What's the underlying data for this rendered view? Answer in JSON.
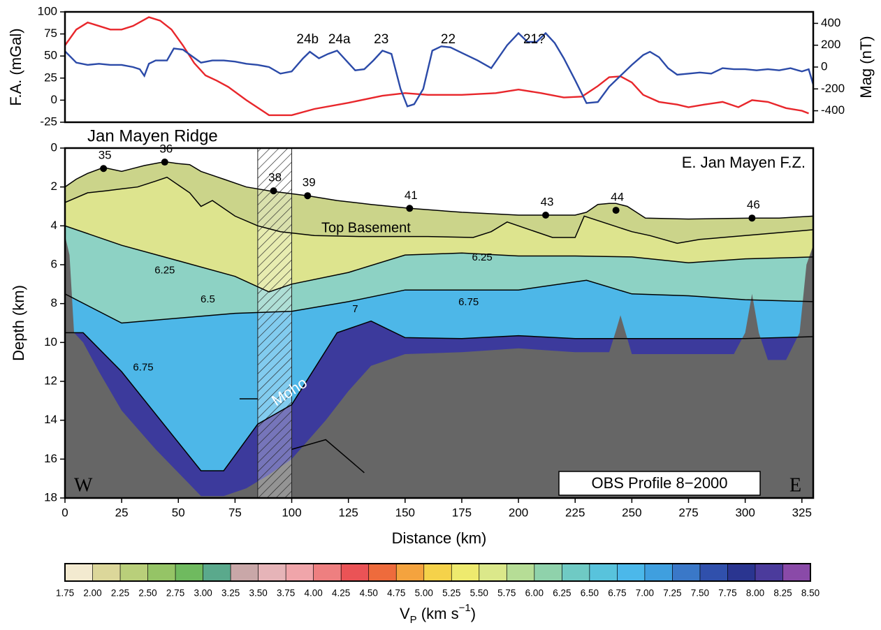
{
  "chart_data": [
    {
      "type": "line",
      "ylabel": "F.A. (mGal)",
      "y2label": "Mag (nT)",
      "xlim": [
        0,
        330
      ],
      "ylim": [
        -25,
        100
      ],
      "yticks": [
        -25,
        0,
        25,
        50,
        75,
        100
      ],
      "y2lim": [
        -505,
        505
      ],
      "y2ticks": [
        -400,
        -200,
        0,
        200,
        400
      ],
      "series": [
        {
          "color": "#e8262b",
          "x": [
            0,
            5,
            10,
            15,
            20,
            25,
            30,
            37,
            42,
            47,
            52,
            57,
            62,
            67,
            72,
            80,
            90,
            100,
            110,
            125,
            140,
            150,
            160,
            175,
            190,
            200,
            210,
            220,
            228,
            235,
            240,
            245,
            250,
            255,
            262,
            270,
            275,
            282,
            290,
            297,
            303,
            310,
            318,
            325,
            328
          ],
          "values": [
            62,
            80,
            88,
            84,
            80,
            80,
            84,
            94,
            90,
            80,
            62,
            42,
            28,
            22,
            15,
            0,
            -17,
            -17,
            -10,
            -3,
            5,
            8,
            6,
            6,
            8,
            12,
            8,
            3,
            4,
            16,
            26,
            27,
            20,
            6,
            -2,
            -5,
            -8,
            -5,
            -2,
            -8,
            0,
            -2,
            -9,
            -12,
            -15
          ]
        },
        {
          "color": "#2b4aa8",
          "axis": "y2",
          "x": [
            0,
            5,
            10,
            15,
            20,
            25,
            30,
            33,
            35,
            37,
            40,
            45,
            48,
            52,
            56,
            60,
            65,
            70,
            75,
            80,
            85,
            90,
            95,
            100,
            105,
            108,
            112,
            116,
            120,
            124,
            128,
            132,
            136,
            140,
            144,
            148,
            151,
            154,
            158,
            162,
            166,
            170,
            175,
            182,
            188,
            195,
            200,
            204,
            208,
            212,
            216,
            220,
            225,
            230,
            235,
            240,
            245,
            250,
            255,
            258,
            262,
            266,
            270,
            275,
            280,
            285,
            290,
            295,
            300,
            305,
            310,
            315,
            320,
            325,
            328,
            330
          ],
          "values": [
            145,
            40,
            20,
            30,
            20,
            20,
            0,
            -20,
            -80,
            30,
            60,
            60,
            170,
            160,
            100,
            40,
            60,
            60,
            50,
            30,
            20,
            0,
            -60,
            -40,
            80,
            140,
            80,
            120,
            150,
            60,
            -30,
            -20,
            60,
            150,
            120,
            -200,
            -360,
            -340,
            -200,
            150,
            190,
            180,
            130,
            60,
            -10,
            200,
            310,
            230,
            230,
            310,
            220,
            80,
            -120,
            -330,
            -320,
            -180,
            -80,
            20,
            110,
            140,
            90,
            -10,
            -70,
            -60,
            -50,
            -60,
            -10,
            -20,
            -20,
            -30,
            -20,
            -30,
            -10,
            -40,
            -20,
            -160
          ]
        }
      ],
      "annotations": [
        {
          "text": "24b",
          "x": 107
        },
        {
          "text": "24a",
          "x": 121
        },
        {
          "text": "23",
          "x": 139.5
        },
        {
          "text": "22",
          "x": 169
        },
        {
          "text": "21?",
          "x": 207
        }
      ]
    },
    {
      "type": "section",
      "xlabel": "Distance (km)",
      "ylabel": "Depth (km)",
      "xlim": [
        0,
        330
      ],
      "xticks": [
        0,
        25,
        50,
        75,
        100,
        125,
        150,
        175,
        200,
        225,
        250,
        275,
        300,
        325
      ],
      "ylim": [
        18,
        0
      ],
      "yticks": [
        0,
        2,
        4,
        6,
        8,
        10,
        12,
        14,
        16,
        18
      ],
      "region_left": "Jan Mayen Ridge",
      "region_right": "E. Jan Mayen F.Z.",
      "top_basement_label": "Top Basement",
      "moho_label": "Moho",
      "west": "W",
      "east": "E",
      "profile": "OBS Profile 8−2000",
      "boundaries": [
        {
          "x": [
            0,
            5,
            10,
            17,
            25,
            30,
            35,
            44,
            50,
            55,
            60,
            70,
            80,
            90,
            100,
            107,
            120,
            135,
            152,
            175,
            200,
            212,
            225,
            230,
            235,
            240,
            243,
            248,
            252,
            256,
            275,
            303,
            315,
            330
          ],
          "depth": [
            2.0,
            1.6,
            1.3,
            1.0,
            1.2,
            1.05,
            0.9,
            0.7,
            0.8,
            0.85,
            1.2,
            1.6,
            2.0,
            2.2,
            2.35,
            2.45,
            2.7,
            2.9,
            3.1,
            3.3,
            3.45,
            3.45,
            3.45,
            3.3,
            2.9,
            2.85,
            2.85,
            3.0,
            3.3,
            3.6,
            3.65,
            3.6,
            3.6,
            3.5
          ]
        },
        {
          "x": [
            0,
            10,
            18,
            25,
            32,
            40,
            45,
            55,
            60,
            65,
            75,
            85,
            95,
            110,
            130,
            160,
            180,
            188,
            195,
            205,
            215,
            225,
            229,
            250,
            258,
            270,
            280,
            290,
            300,
            330
          ],
          "depth": [
            2.8,
            2.3,
            2.2,
            2.1,
            2.0,
            1.7,
            1.5,
            2.3,
            3.0,
            2.7,
            3.5,
            4.0,
            4.3,
            4.5,
            4.55,
            4.55,
            4.6,
            4.3,
            3.8,
            4.2,
            4.6,
            4.6,
            3.5,
            4.3,
            4.5,
            4.9,
            4.7,
            4.6,
            4.5,
            4.2
          ]
        },
        {
          "x": [
            0,
            25,
            50,
            75,
            90,
            100,
            125,
            150,
            175,
            200,
            225,
            250,
            275,
            300,
            330
          ],
          "depth": [
            4.0,
            5.0,
            5.8,
            6.6,
            7.4,
            7.0,
            6.4,
            5.5,
            5.4,
            5.55,
            5.55,
            5.6,
            5.9,
            5.7,
            5.6
          ]
        },
        {
          "x": [
            0,
            25,
            50,
            75,
            100,
            125,
            150,
            175,
            200,
            230,
            250,
            275,
            300,
            330
          ],
          "depth": [
            7.5,
            9.0,
            8.75,
            8.5,
            8.4,
            7.9,
            7.3,
            7.3,
            7.3,
            6.8,
            7.5,
            7.6,
            7.8,
            7.9
          ]
        },
        {
          "x": [
            0,
            8,
            25,
            60,
            70,
            85,
            100,
            120,
            135,
            150,
            175,
            200,
            225,
            250,
            275,
            300,
            330
          ],
          "depth": [
            9.5,
            9.5,
            11.5,
            16.6,
            16.6,
            14.2,
            13.2,
            9.5,
            8.9,
            9.75,
            9.8,
            9.65,
            9.8,
            9.8,
            9.8,
            9.8,
            9.7
          ]
        }
      ],
      "layer_colors": [
        "#cbd48a",
        "#dde48e",
        "#8dd2c4",
        "#4db7e8",
        "#3c3a9c"
      ],
      "unresolved": {
        "color": "#666666",
        "x": [
          0,
          2,
          4,
          8,
          15,
          25,
          40,
          55,
          60,
          70,
          80,
          90,
          100,
          115,
          125,
          135,
          150,
          175,
          200,
          225,
          240,
          243,
          245,
          247,
          250,
          275,
          295,
          300,
          303,
          306,
          310,
          318,
          324,
          327,
          330
        ],
        "depth": [
          4.5,
          5.5,
          9.5,
          10,
          11.5,
          13.5,
          15.5,
          17.3,
          17.9,
          17.9,
          17.5,
          16.8,
          16.0,
          14.0,
          12.5,
          11.2,
          10.6,
          10.5,
          10.3,
          10.5,
          10.5,
          9.4,
          8.6,
          9.4,
          10.6,
          10.6,
          10.6,
          9.5,
          7.5,
          9.5,
          10.9,
          10.9,
          9.5,
          6.0,
          5.0
        ]
      },
      "hatch": [
        85,
        100
      ],
      "reflectors": [
        {
          "x": [
            77,
            85
          ],
          "depth": [
            12.9,
            12.9
          ]
        },
        {
          "x": [
            100,
            115,
            132
          ],
          "depth": [
            15.5,
            15.0,
            16.7
          ]
        }
      ],
      "stations": [
        {
          "label": "35",
          "x": 17,
          "depth": 1.05
        },
        {
          "label": "36",
          "x": 44,
          "depth": 0.72
        },
        {
          "label": "38",
          "x": 92,
          "depth": 2.2
        },
        {
          "label": "39",
          "x": 107,
          "depth": 2.45
        },
        {
          "label": "41",
          "x": 152,
          "depth": 3.1
        },
        {
          "label": "43",
          "x": 212,
          "depth": 3.45
        },
        {
          "label": "44",
          "x": 243,
          "depth": 3.2
        },
        {
          "label": "46",
          "x": 303,
          "depth": 3.6
        }
      ],
      "contour_labels": [
        {
          "text": "6.25",
          "x": 44,
          "depth": 6.3
        },
        {
          "text": "6.5",
          "x": 63,
          "depth": 7.8
        },
        {
          "text": "7",
          "x": 128,
          "depth": 8.3
        },
        {
          "text": "6.75",
          "x": 178,
          "depth": 7.95
        },
        {
          "text": "6.25",
          "x": 184,
          "depth": 5.65
        },
        {
          "text": "6.75",
          "x": 34.5,
          "depth": 11.3
        }
      ]
    },
    {
      "type": "colorbar",
      "title": {
        "base": "V",
        "sub": "P",
        "mid": " (km s",
        "sup": "−1",
        "end": ")"
      },
      "xlim": [
        1.75,
        8.5
      ],
      "xticks": [
        1.75,
        {
          "value": 2,
          "label": "2.00"
        },
        2.25,
        {
          "value": 2.5,
          "label": "2.50"
        },
        2.75,
        {
          "value": 3,
          "label": "3.00"
        },
        3.25,
        {
          "value": 3.5,
          "label": "3.50"
        },
        3.75,
        {
          "value": 4,
          "label": "4.00"
        },
        4.25,
        {
          "value": 4.5,
          "label": "4.50"
        },
        4.75,
        {
          "value": 5,
          "label": "5.00"
        },
        5.25,
        {
          "value": 5.5,
          "label": "5.50"
        },
        5.75,
        {
          "value": 6,
          "label": "6.00"
        },
        6.25,
        {
          "value": 6.5,
          "label": "6.50"
        },
        6.75,
        {
          "value": 7,
          "label": "7.00"
        },
        7.25,
        {
          "value": 7.5,
          "label": "7.50"
        },
        7.75,
        {
          "value": 8,
          "label": "8.00"
        },
        8.25,
        {
          "value": 8.5,
          "label": "8.50"
        }
      ],
      "colors": [
        "#f3ead0",
        "#dcd79a",
        "#b9cf7a",
        "#95c466",
        "#6fba5f",
        "#5aa98c",
        "#c9a7a8",
        "#e6b4b8",
        "#f0a5aa",
        "#ee7f80",
        "#ea5356",
        "#ee6b3c",
        "#f4a33e",
        "#f5d24a",
        "#eeea6e",
        "#dbe88a",
        "#b6dd96",
        "#8fd2ab",
        "#6fcac4",
        "#58c3dc",
        "#4bb8ea",
        "#3f9fdf",
        "#3a78c8",
        "#3050ac",
        "#2a3590",
        "#4b3b9c",
        "#8a4aa8"
      ]
    }
  ]
}
